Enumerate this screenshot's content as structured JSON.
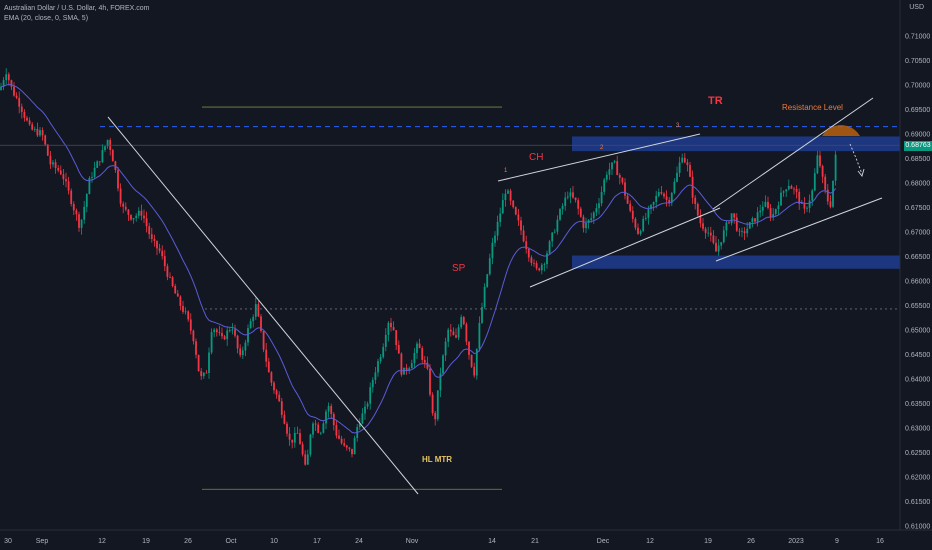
{
  "header": {
    "symbol_line": "Australian Dollar / U.S. Dollar, 4h, FOREX.com",
    "indicator_line": "EMA (20, close, 0, SMA, 5)",
    "currency": "USD"
  },
  "last_price": "0.68763",
  "colors": {
    "background": "#131722",
    "up_candle": "#089981",
    "down_candle": "#f23645",
    "ema": "#5b5bd6",
    "zone": "#1e3a8a",
    "resistance_arc": "#b8610f",
    "dashed_level": "#2962ff",
    "annotation_red": "#f23645",
    "annotation_orange": "#f07b3a",
    "annotation_yellow": "#e6c565"
  },
  "chart_data": {
    "type": "candlestick",
    "ylim": [
      0.6115,
      0.7145
    ],
    "y_ticks": [
      "0.71000",
      "0.70500",
      "0.70000",
      "0.69500",
      "0.69000",
      "0.68500",
      "0.68000",
      "0.67500",
      "0.67000",
      "0.66500",
      "0.66000",
      "0.65500",
      "0.65000",
      "0.64500",
      "0.64000",
      "0.63500",
      "0.63000",
      "0.62500",
      "0.62000",
      "0.61500",
      "0.61000"
    ],
    "x_ticks": [
      "30",
      "Sep",
      "12",
      "19",
      "26",
      "Oct",
      "10",
      "17",
      "24",
      "Nov",
      "14",
      "21",
      "Dec",
      "12",
      "19",
      "26",
      "2023",
      "9",
      "16"
    ],
    "close_path": [
      {
        "x": "30",
        "y": 0.699
      },
      {
        "x": "Sep",
        "y": 0.691
      },
      {
        "x": "12",
        "y": 0.686
      },
      {
        "x": "19",
        "y": 0.672
      },
      {
        "x": "26",
        "y": 0.651
      },
      {
        "x": "Oct",
        "y": 0.649
      },
      {
        "x": "10",
        "y": 0.63
      },
      {
        "x": "17",
        "y": 0.625
      },
      {
        "x": "24",
        "y": 0.645
      },
      {
        "x": "Nov",
        "y": 0.643
      },
      {
        "x": "14",
        "y": 0.671
      },
      {
        "x": "21",
        "y": 0.665
      },
      {
        "x": "Dec",
        "y": 0.682
      },
      {
        "x": "12",
        "y": 0.688
      },
      {
        "x": "19",
        "y": 0.668
      },
      {
        "x": "26",
        "y": 0.674
      },
      {
        "x": "2023",
        "y": 0.68
      },
      {
        "x": "9",
        "y": 0.6876
      }
    ],
    "levels": {
      "dashed_resistance": 0.6915,
      "resistance_zone": [
        0.6865,
        0.6895
      ],
      "support_zone": [
        0.6625,
        0.6652
      ],
      "dotted_level": 0.6543,
      "range_top": 0.6955,
      "range_bottom": 0.6175,
      "grey_reference": 0.6877
    },
    "annotations": [
      "TR",
      "Resistance Level",
      "CH",
      "SP",
      "HL MTR",
      "1",
      "2",
      "3"
    ],
    "ema_label": "EMA (20, close, 0, SMA, 5)"
  }
}
